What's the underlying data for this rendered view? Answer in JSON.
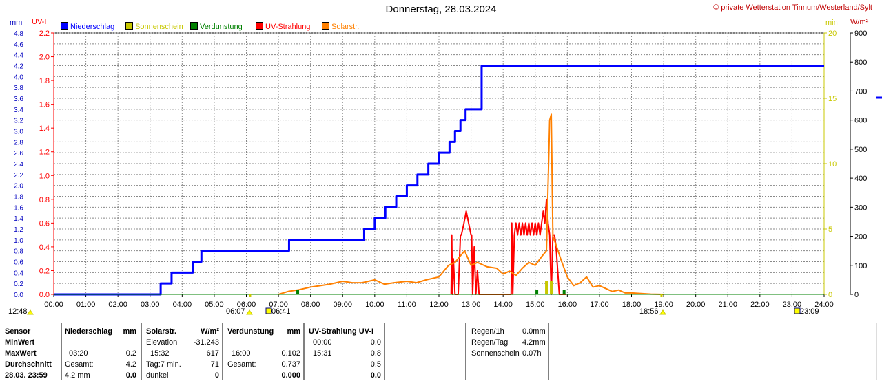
{
  "title": "Donnerstag, 28.03.2024",
  "copyright": "© private Wetterstation Tinnum/Westerland/Sylt",
  "units": {
    "mm": "mm",
    "uvi": "UV-I",
    "min": "min",
    "wm2": "W/m²"
  },
  "legend": [
    {
      "label": "Niederschlag",
      "color": "#0000ff"
    },
    {
      "label": "Sonnenschein",
      "color": "#c8c800"
    },
    {
      "label": "Verdunstung",
      "color": "#008000"
    },
    {
      "label": "UV-Strahlung",
      "color": "#ff0000"
    },
    {
      "label": "Solarstr.",
      "color": "#ff8000"
    }
  ],
  "colors": {
    "rain": "#0000ff",
    "sun": "#c8c800",
    "evap": "#008000",
    "uv": "#ff0000",
    "solar": "#ff8000",
    "uvAxis": "#ff0000",
    "minAxis": "#c8c800"
  },
  "axes": {
    "mm_ticks": [
      "0.0",
      "0.2",
      "0.4",
      "0.6",
      "0.8",
      "1.0",
      "1.2",
      "1.4",
      "1.6",
      "1.8",
      "2.0",
      "2.2",
      "2.4",
      "2.6",
      "2.8",
      "3.0",
      "3.2",
      "3.4",
      "3.6",
      "3.8",
      "4.0",
      "4.2",
      "4.4",
      "4.6",
      "4.8"
    ],
    "uvi_ticks": [
      "0.0",
      "0.2",
      "0.4",
      "0.6",
      "0.8",
      "1.0",
      "1.2",
      "1.4",
      "1.6",
      "1.8",
      "2.0",
      "2.2"
    ],
    "min_ticks": [
      "0",
      "5",
      "10",
      "15",
      "20"
    ],
    "wm2_ticks": [
      "0",
      "100",
      "200",
      "300",
      "400",
      "500",
      "600",
      "700",
      "800",
      "900"
    ],
    "time_ticks": [
      "00:00",
      "01:00",
      "02:00",
      "03:00",
      "04:00",
      "05:00",
      "06:00",
      "07:00",
      "08:00",
      "09:00",
      "10:00",
      "11:00",
      "12:00",
      "13:00",
      "14:00",
      "15:00",
      "16:00",
      "17:00",
      "18:00",
      "19:00",
      "20:00",
      "21:00",
      "22:00",
      "23:00",
      "24:00"
    ]
  },
  "events": {
    "moonset": "12:48",
    "sunrise": "06:07",
    "moonrise": "06:41",
    "sunset": "18:56",
    "moon2": "23:09"
  },
  "chart_data": {
    "type": "line",
    "x_unit": "hours",
    "xlim": [
      0,
      24
    ],
    "series": [
      {
        "name": "Niederschlag",
        "unit": "mm",
        "ylim": [
          0,
          4.8
        ],
        "step": true,
        "x": [
          0,
          3.33,
          3.67,
          4.33,
          4.6,
          7.33,
          9.67,
          10.0,
          10.33,
          10.67,
          11.0,
          11.33,
          11.67,
          12.0,
          12.33,
          12.5,
          12.67,
          12.83,
          13.33,
          24
        ],
        "y": [
          0,
          0.2,
          0.4,
          0.6,
          0.8,
          1.0,
          1.2,
          1.4,
          1.6,
          1.8,
          2.0,
          2.2,
          2.4,
          2.6,
          2.8,
          3.0,
          3.2,
          3.4,
          4.2,
          4.2
        ]
      },
      {
        "name": "UV-Strahlung",
        "unit": "UV-I",
        "ylim": [
          0,
          2.2
        ],
        "x": [
          12.38,
          12.4,
          12.42,
          12.45,
          12.5,
          12.6,
          12.67,
          12.7,
          12.78,
          12.85,
          13.0,
          13.02,
          13.05,
          13.1,
          13.15,
          13.2,
          13.25,
          14.25,
          14.27,
          14.3,
          14.35,
          14.4,
          14.45,
          14.5,
          14.55,
          14.6,
          14.65,
          14.7,
          14.75,
          14.8,
          14.85,
          14.9,
          14.95,
          15.0,
          15.05,
          15.1,
          15.15,
          15.2,
          15.25,
          15.3,
          15.35,
          15.4,
          15.45,
          15.5,
          15.55,
          15.6,
          15.65,
          15.7,
          15.75,
          15.8,
          15.85,
          15.9,
          15.95
        ],
        "y": [
          0,
          0.5,
          0,
          0.3,
          0,
          0,
          0.5,
          0.5,
          0.6,
          0.7,
          0.5,
          0.5,
          0,
          0.4,
          0,
          0.2,
          0,
          0,
          0.6,
          0,
          0.5,
          0.6,
          0.5,
          0.6,
          0.5,
          0.6,
          0.5,
          0.6,
          0.5,
          0.6,
          0.5,
          0.6,
          0.5,
          0.6,
          0.5,
          0.6,
          0.5,
          0.6,
          0.7,
          0.6,
          0.8,
          0.6,
          0.5,
          0,
          0.5,
          0.5,
          0.4,
          0.2,
          0,
          0,
          0,
          0,
          0
        ]
      },
      {
        "name": "Solarstr.",
        "unit": "W/m²",
        "ylim": [
          0,
          900
        ],
        "x": [
          7.0,
          7.3,
          7.6,
          8.0,
          8.3,
          8.6,
          9.0,
          9.3,
          9.6,
          10.0,
          10.3,
          10.6,
          11.0,
          11.3,
          11.6,
          12.0,
          12.3,
          12.5,
          12.65,
          12.8,
          13.0,
          13.2,
          13.5,
          13.8,
          14.0,
          14.2,
          14.4,
          14.6,
          14.8,
          15.0,
          15.2,
          15.35,
          15.45,
          15.5,
          15.55,
          15.65,
          15.8,
          16.0,
          16.2,
          16.4,
          16.6,
          16.8,
          17.0,
          17.2,
          17.4,
          17.6,
          17.8,
          18.0,
          18.3,
          18.6,
          19.0
        ],
        "y": [
          0,
          10,
          15,
          25,
          30,
          35,
          45,
          40,
          40,
          50,
          35,
          40,
          45,
          40,
          50,
          60,
          100,
          110,
          130,
          150,
          100,
          110,
          95,
          90,
          70,
          80,
          65,
          90,
          110,
          100,
          130,
          150,
          600,
          620,
          200,
          170,
          120,
          60,
          30,
          40,
          60,
          25,
          30,
          20,
          10,
          15,
          5,
          5,
          3,
          1,
          0
        ]
      },
      {
        "name": "Sonnenschein",
        "unit": "min",
        "ylim": [
          0,
          20
        ],
        "type": "bar",
        "x": [
          15.35,
          15.5
        ],
        "y": [
          1,
          1
        ]
      },
      {
        "name": "Verdunstung",
        "unit": "mm",
        "ylim": [
          0,
          4.8
        ],
        "type": "bar",
        "x": [
          7.6,
          15.05,
          15.9
        ],
        "y": [
          0.02,
          0.02,
          0.02
        ]
      }
    ]
  },
  "stats": {
    "col1": [
      "Sensor",
      "MinWert",
      "MaxWert",
      "Durchschnitt",
      "28.03. 23:59"
    ],
    "rain": {
      "header": "Niederschlag",
      "unit": "mm",
      "r3_time": "03:20",
      "r3_val": "0.2",
      "r4_label": "Gesamt:",
      "r4_val": "4.2",
      "r5_label": "4.2 mm",
      "r5_val": "0.0"
    },
    "solar": {
      "header": "Solarstr.",
      "unit": "W/m²",
      "r2_label": "Elevation",
      "r2_val": "-31.243",
      "r3_time": "15:32",
      "r3_val": "617",
      "r4_label": "Tag:7 min.",
      "r4_val": "71",
      "r5_label": "dunkel",
      "r5_val": "0"
    },
    "evap": {
      "header": "Verdunstung",
      "unit": "mm",
      "r3_time": "16:00",
      "r3_val": "0.102",
      "r4_label": "Gesamt:",
      "r4_val": "0.737",
      "r5_val": "0.000"
    },
    "uv": {
      "header": "UV-Strahlung UV-I",
      "r2_time": "00:00",
      "r2_val": "0.0",
      "r3_time": "15:31",
      "r3_val": "0.8",
      "r4_val": "0.5",
      "r5_val": "0.0"
    },
    "summary": [
      {
        "label": "Regen/1h",
        "value": "0.0mm"
      },
      {
        "label": "Regen/Tag",
        "value": "4.2mm"
      },
      {
        "label": "Sonnenschein",
        "value": "0.07h"
      }
    ]
  }
}
